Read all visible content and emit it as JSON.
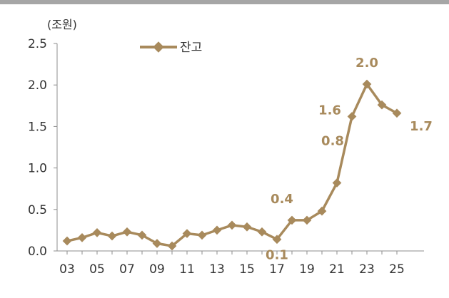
{
  "chart_data": {
    "type": "line",
    "unit_label": "(조원)",
    "x": [
      "03",
      "04",
      "05",
      "06",
      "07",
      "08",
      "09",
      "10",
      "11",
      "12",
      "13",
      "14",
      "15",
      "16",
      "17",
      "18",
      "19",
      "20",
      "21",
      "22",
      "23",
      "24",
      "25"
    ],
    "x_tick_labels": [
      "03",
      "05",
      "07",
      "09",
      "11",
      "13",
      "15",
      "17",
      "19",
      "21",
      "23",
      "25"
    ],
    "y_tick_labels": [
      "0.0",
      "0.5",
      "1.0",
      "1.5",
      "2.0",
      "2.5"
    ],
    "ylim": [
      0,
      2.5
    ],
    "series": [
      {
        "name": "잔고",
        "color": "#a88a5c",
        "values": [
          0.12,
          0.16,
          0.22,
          0.18,
          0.23,
          0.19,
          0.09,
          0.06,
          0.21,
          0.19,
          0.25,
          0.31,
          0.29,
          0.23,
          0.14,
          0.37,
          0.37,
          0.48,
          0.82,
          1.62,
          2.01,
          1.76,
          1.66
        ]
      }
    ],
    "data_labels": [
      {
        "index": 14,
        "text": "0.1"
      },
      {
        "index": 15,
        "text": "0.4"
      },
      {
        "index": 18,
        "text": "0.8"
      },
      {
        "index": 19,
        "text": "1.6"
      },
      {
        "index": 20,
        "text": "2.0"
      },
      {
        "index": 22,
        "text": "1.7"
      }
    ],
    "legend": {
      "position": "top-left",
      "label": "잔고"
    },
    "grid": false
  }
}
